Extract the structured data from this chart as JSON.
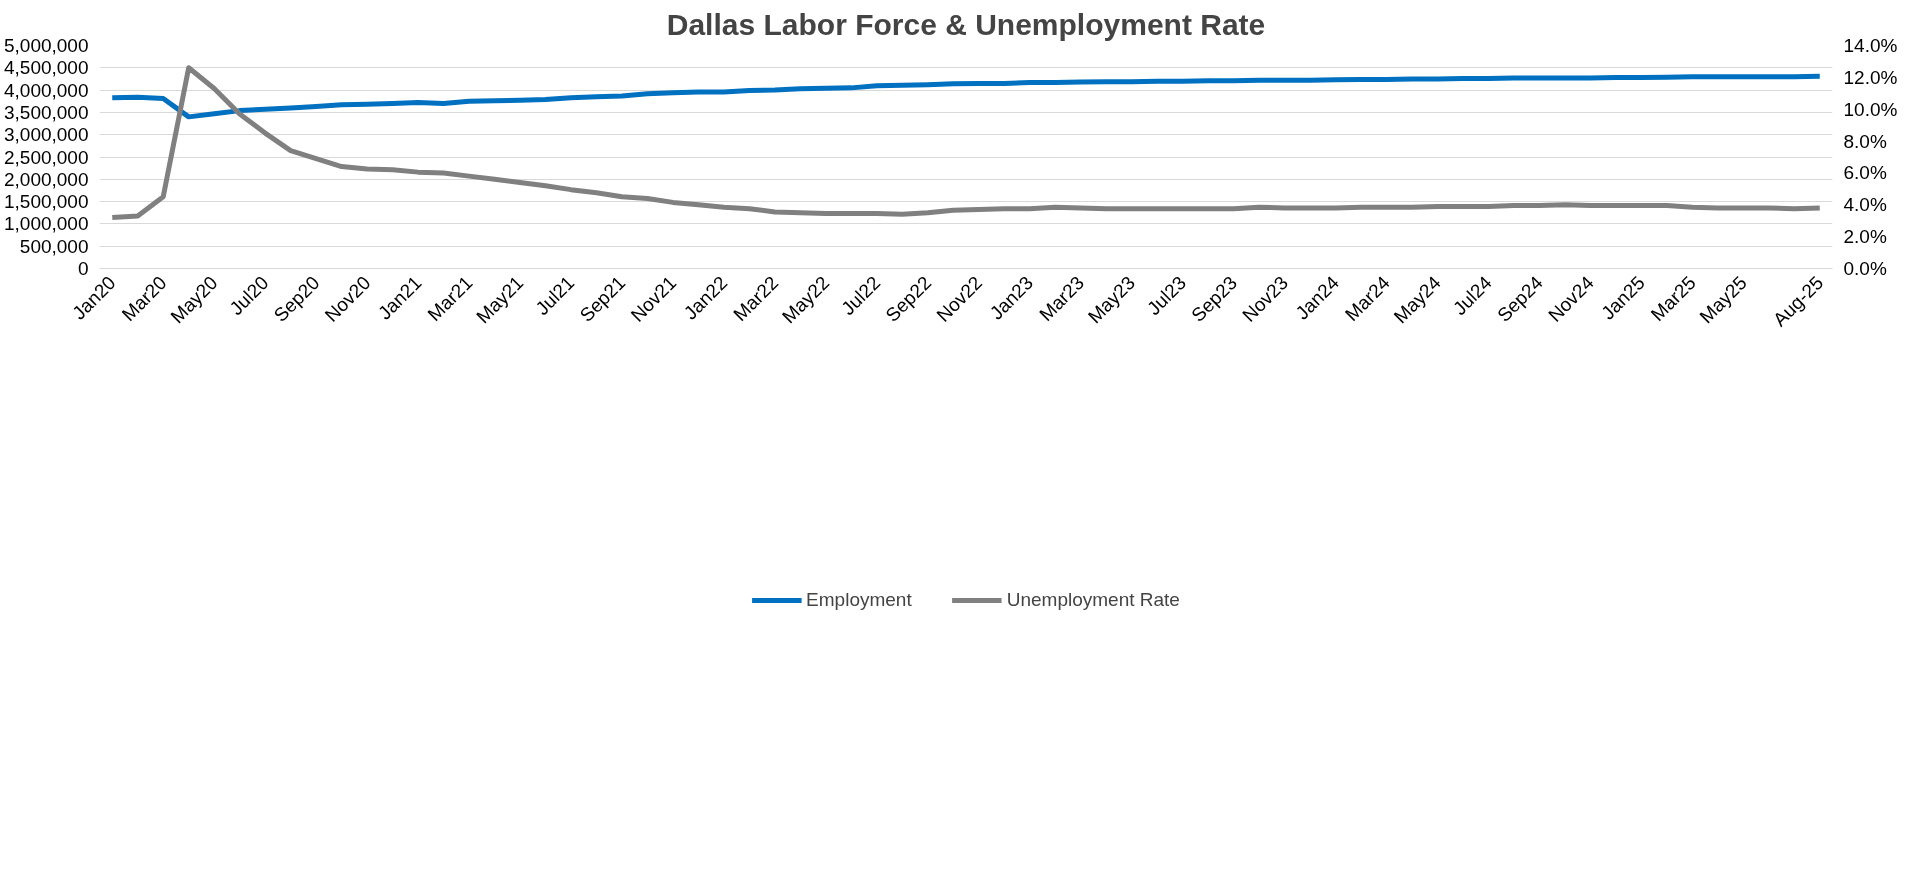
{
  "chart_data": {
    "type": "line",
    "title": "Dallas Labor Force & Unemployment Rate",
    "categories": [
      "Jan20",
      null,
      "Mar20",
      null,
      "May20",
      null,
      "Jul20",
      null,
      "Sep20",
      null,
      "Nov20",
      null,
      "Jan21",
      null,
      "Mar21",
      null,
      "May21",
      null,
      "Jul21",
      null,
      "Sep21",
      null,
      "Nov21",
      null,
      "Jan22",
      null,
      "Mar22",
      null,
      "May22",
      null,
      "Jul22",
      null,
      "Sep22",
      null,
      "Nov22",
      null,
      "Jan23",
      null,
      "Mar23",
      null,
      "May23",
      null,
      "Jul23",
      null,
      "Sep23",
      null,
      "Nov23",
      null,
      "Jan24",
      null,
      "Mar24",
      null,
      "May24",
      null,
      "Jul24",
      null,
      "Sep24",
      null,
      "Nov24",
      null,
      "Jan25",
      null,
      "Mar25",
      null,
      "May25",
      null,
      null,
      "Aug-25"
    ],
    "series": [
      {
        "name": "Employment",
        "color": "#0070c0",
        "values": [
          3830000,
          3840000,
          3810000,
          3400000,
          3470000,
          3540000,
          3570000,
          3600000,
          3630000,
          3670000,
          3680000,
          3700000,
          3720000,
          3700000,
          3750000,
          3760000,
          3770000,
          3790000,
          3830000,
          3850000,
          3870000,
          3920000,
          3940000,
          3960000,
          3960000,
          3990000,
          4000000,
          4030000,
          4040000,
          4050000,
          4100000,
          4110000,
          4120000,
          4140000,
          4150000,
          4150000,
          4170000,
          4170000,
          4180000,
          4190000,
          4190000,
          4200000,
          4200000,
          4210000,
          4210000,
          4220000,
          4220000,
          4220000,
          4230000,
          4240000,
          4240000,
          4250000,
          4250000,
          4260000,
          4260000,
          4270000,
          4270000,
          4270000,
          4270000,
          4280000,
          4280000,
          4290000,
          4300000,
          4300000,
          4300000,
          4300000,
          4300000,
          4310000
        ]
      },
      {
        "name": "Unemployment Rate",
        "color": "#808080",
        "axis": "y2",
        "values": [
          3.2,
          3.3,
          4.5,
          12.6,
          11.3,
          9.7,
          8.5,
          7.4,
          6.9,
          6.4,
          6.25,
          6.2,
          6.05,
          6.0,
          5.8,
          5.6,
          5.4,
          5.2,
          4.95,
          4.75,
          4.5,
          4.4,
          4.15,
          4.0,
          3.85,
          3.75,
          3.55,
          3.5,
          3.45,
          3.45,
          3.45,
          3.4,
          3.5,
          3.65,
          3.7,
          3.75,
          3.75,
          3.85,
          3.8,
          3.75,
          3.75,
          3.75,
          3.75,
          3.75,
          3.75,
          3.85,
          3.8,
          3.8,
          3.8,
          3.85,
          3.85,
          3.85,
          3.9,
          3.9,
          3.9,
          3.95,
          3.95,
          4.0,
          3.95,
          3.95,
          3.95,
          3.95,
          3.85,
          3.8,
          3.8,
          3.8,
          3.75,
          3.8
        ]
      }
    ],
    "ylim": [
      0,
      5000000
    ],
    "yticks": [
      0,
      {
        "value": 500000,
        "label": "500,000"
      },
      {
        "value": 1000000,
        "label": "1,000,000"
      },
      {
        "value": 1500000,
        "label": "1,500,000"
      },
      {
        "value": 2000000,
        "label": "2,000,000"
      },
      {
        "value": 2500000,
        "label": "2,500,000"
      },
      {
        "value": 3000000,
        "label": "3,000,000"
      },
      {
        "value": 3500000,
        "label": "3,500,000"
      },
      {
        "value": 4000000,
        "label": "4,000,000"
      },
      {
        "value": 4500000,
        "label": "4,500,000"
      },
      {
        "value": 5000000,
        "label": "5,000,000"
      }
    ],
    "y2lim": [
      0,
      14
    ],
    "y2ticks": [
      {
        "value": 0,
        "label": "0.0%"
      },
      {
        "value": 2,
        "label": "2.0%"
      },
      {
        "value": 4,
        "label": "4.0%"
      },
      {
        "value": 6,
        "label": "6.0%"
      },
      {
        "value": 8,
        "label": "8.0%"
      },
      {
        "value": 10,
        "label": "10.0%"
      },
      {
        "value": 12,
        "label": "12.0%"
      },
      {
        "value": 14,
        "label": "14.0%"
      }
    ],
    "grid": "y",
    "legend": "bottom",
    "line_style": "solid"
  }
}
